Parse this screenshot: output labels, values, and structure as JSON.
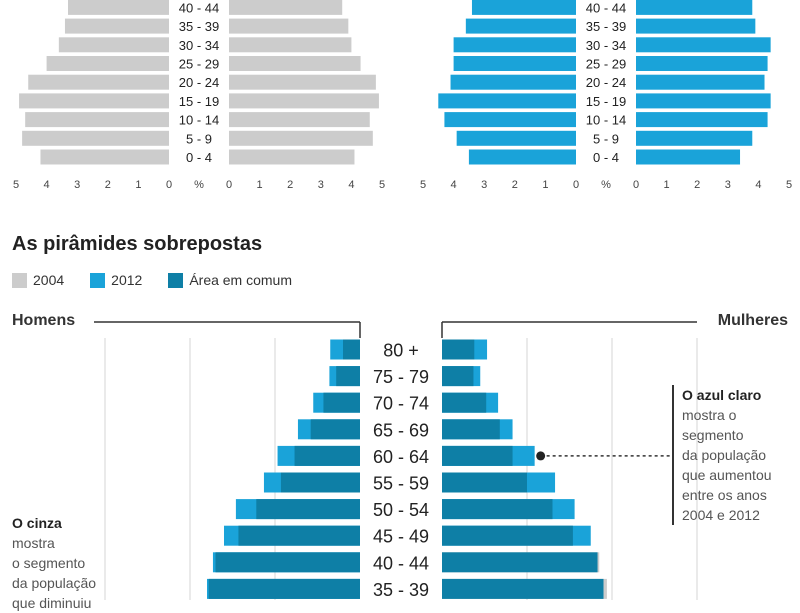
{
  "top_axis": {
    "ticks_left": [
      "5",
      "4",
      "3",
      "2",
      "1",
      "0"
    ],
    "ticks_right": [
      "0",
      "1",
      "2",
      "3",
      "4",
      "5"
    ],
    "unit": "%"
  },
  "section": {
    "title": "As pirâmides sobrepostas",
    "legend": [
      {
        "label": "2004",
        "color": "#cccccc"
      },
      {
        "label": "2012",
        "color": "#1aa3d9"
      },
      {
        "label": "Área em comum",
        "color": "#0e7fa6"
      }
    ],
    "men_label": "Homens",
    "women_label": "Mulheres"
  },
  "annotations": {
    "right": {
      "heading": "O azul claro",
      "lines": [
        "mostra o",
        "segmento",
        "da população",
        "que aumentou",
        "entre os anos",
        "2004 e 2012"
      ]
    },
    "left": {
      "heading": "O cinza",
      "lines": [
        "mostra",
        "o segmento",
        "da população",
        "que diminuiu"
      ]
    }
  },
  "chart_data": [
    {
      "type": "bar",
      "orientation": "horizontal-population-pyramid",
      "categories": [
        "0 - 4",
        "5 - 9",
        "10 - 14",
        "15 - 19",
        "20 - 24",
        "25 - 29",
        "30 - 34",
        "35 - 39",
        "40 - 44"
      ],
      "series": [
        {
          "name": "Homens",
          "values": [
            4.2,
            4.8,
            4.7,
            4.9,
            4.6,
            4.0,
            3.6,
            3.4,
            3.3
          ]
        },
        {
          "name": "Mulheres",
          "values": [
            4.1,
            4.7,
            4.6,
            4.9,
            4.8,
            4.3,
            4.0,
            3.9,
            3.7
          ]
        }
      ],
      "year": "2004",
      "color": "#cccccc",
      "xlim": [
        0,
        5
      ],
      "xlabel": "%"
    },
    {
      "type": "bar",
      "orientation": "horizontal-population-pyramid",
      "categories": [
        "0 - 4",
        "5 - 9",
        "10 - 14",
        "15 - 19",
        "20 - 24",
        "25 - 29",
        "30 - 34",
        "35 - 39",
        "40 - 44"
      ],
      "series": [
        {
          "name": "Homens",
          "values": [
            3.5,
            3.9,
            4.3,
            4.5,
            4.1,
            4.0,
            4.0,
            3.6,
            3.4
          ]
        },
        {
          "name": "Mulheres",
          "values": [
            3.4,
            3.8,
            4.3,
            4.4,
            4.2,
            4.3,
            4.4,
            3.9,
            3.8
          ]
        }
      ],
      "year": "2012",
      "color": "#1aa3d9",
      "xlim": [
        0,
        5
      ],
      "xlabel": "%"
    },
    {
      "type": "bar",
      "orientation": "horizontal-population-pyramid-overlay",
      "categories": [
        "80 +",
        "75 - 79",
        "70 - 74",
        "65 - 69",
        "60 - 64",
        "55 - 59",
        "50 - 54",
        "45 - 49",
        "40 - 44",
        "35 - 39"
      ],
      "series": [
        {
          "name": "Homens 2004",
          "values": [
            0.2,
            0.28,
            0.43,
            0.58,
            0.77,
            0.93,
            1.22,
            1.43,
            1.7,
            1.78
          ]
        },
        {
          "name": "Homens 2012",
          "values": [
            0.35,
            0.36,
            0.55,
            0.73,
            0.97,
            1.13,
            1.46,
            1.6,
            1.73,
            1.8
          ]
        },
        {
          "name": "Mulheres 2004",
          "values": [
            0.38,
            0.37,
            0.52,
            0.68,
            0.83,
            1.0,
            1.3,
            1.54,
            1.85,
            1.94
          ]
        },
        {
          "name": "Mulheres 2012",
          "values": [
            0.53,
            0.45,
            0.66,
            0.83,
            1.09,
            1.33,
            1.56,
            1.75,
            1.83,
            1.9
          ]
        }
      ],
      "colors": {
        "2004": "#cccccc",
        "2012": "#1aa3d9",
        "common": "#0e7fa6"
      },
      "xlim": [
        0,
        2.5
      ]
    }
  ]
}
